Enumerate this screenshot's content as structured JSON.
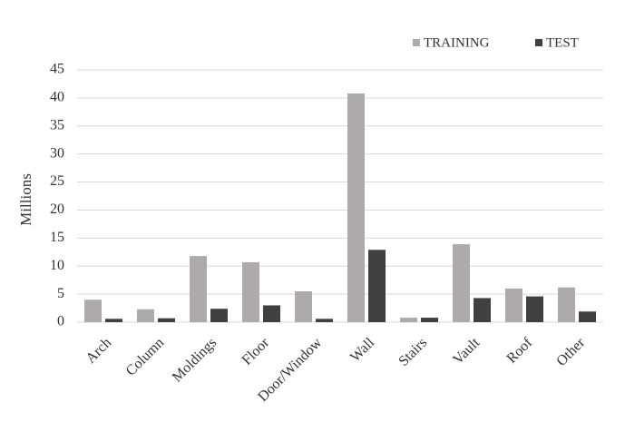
{
  "chart_data": {
    "type": "bar",
    "y_label": "Millions",
    "categories": [
      "Arch",
      "Column",
      "Moldings",
      "Floor",
      "Door/Window",
      "Wall",
      "Stairs",
      "Vault",
      "Roof",
      "Other"
    ],
    "series": [
      {
        "name": "TRAINING",
        "color": "#aeaaaa",
        "values": [
          4.0,
          2.3,
          11.8,
          10.7,
          5.5,
          40.8,
          0.8,
          13.9,
          6.0,
          6.2
        ]
      },
      {
        "name": "TEST",
        "color": "#404040",
        "values": [
          0.6,
          0.7,
          2.4,
          3.0,
          0.6,
          12.9,
          0.8,
          4.3,
          4.6,
          1.9
        ]
      }
    ],
    "ylim": [
      0,
      45
    ],
    "yticks": [
      0,
      5,
      10,
      15,
      20,
      25,
      30,
      35,
      40,
      45
    ],
    "grid": true,
    "legend": "top-right"
  }
}
